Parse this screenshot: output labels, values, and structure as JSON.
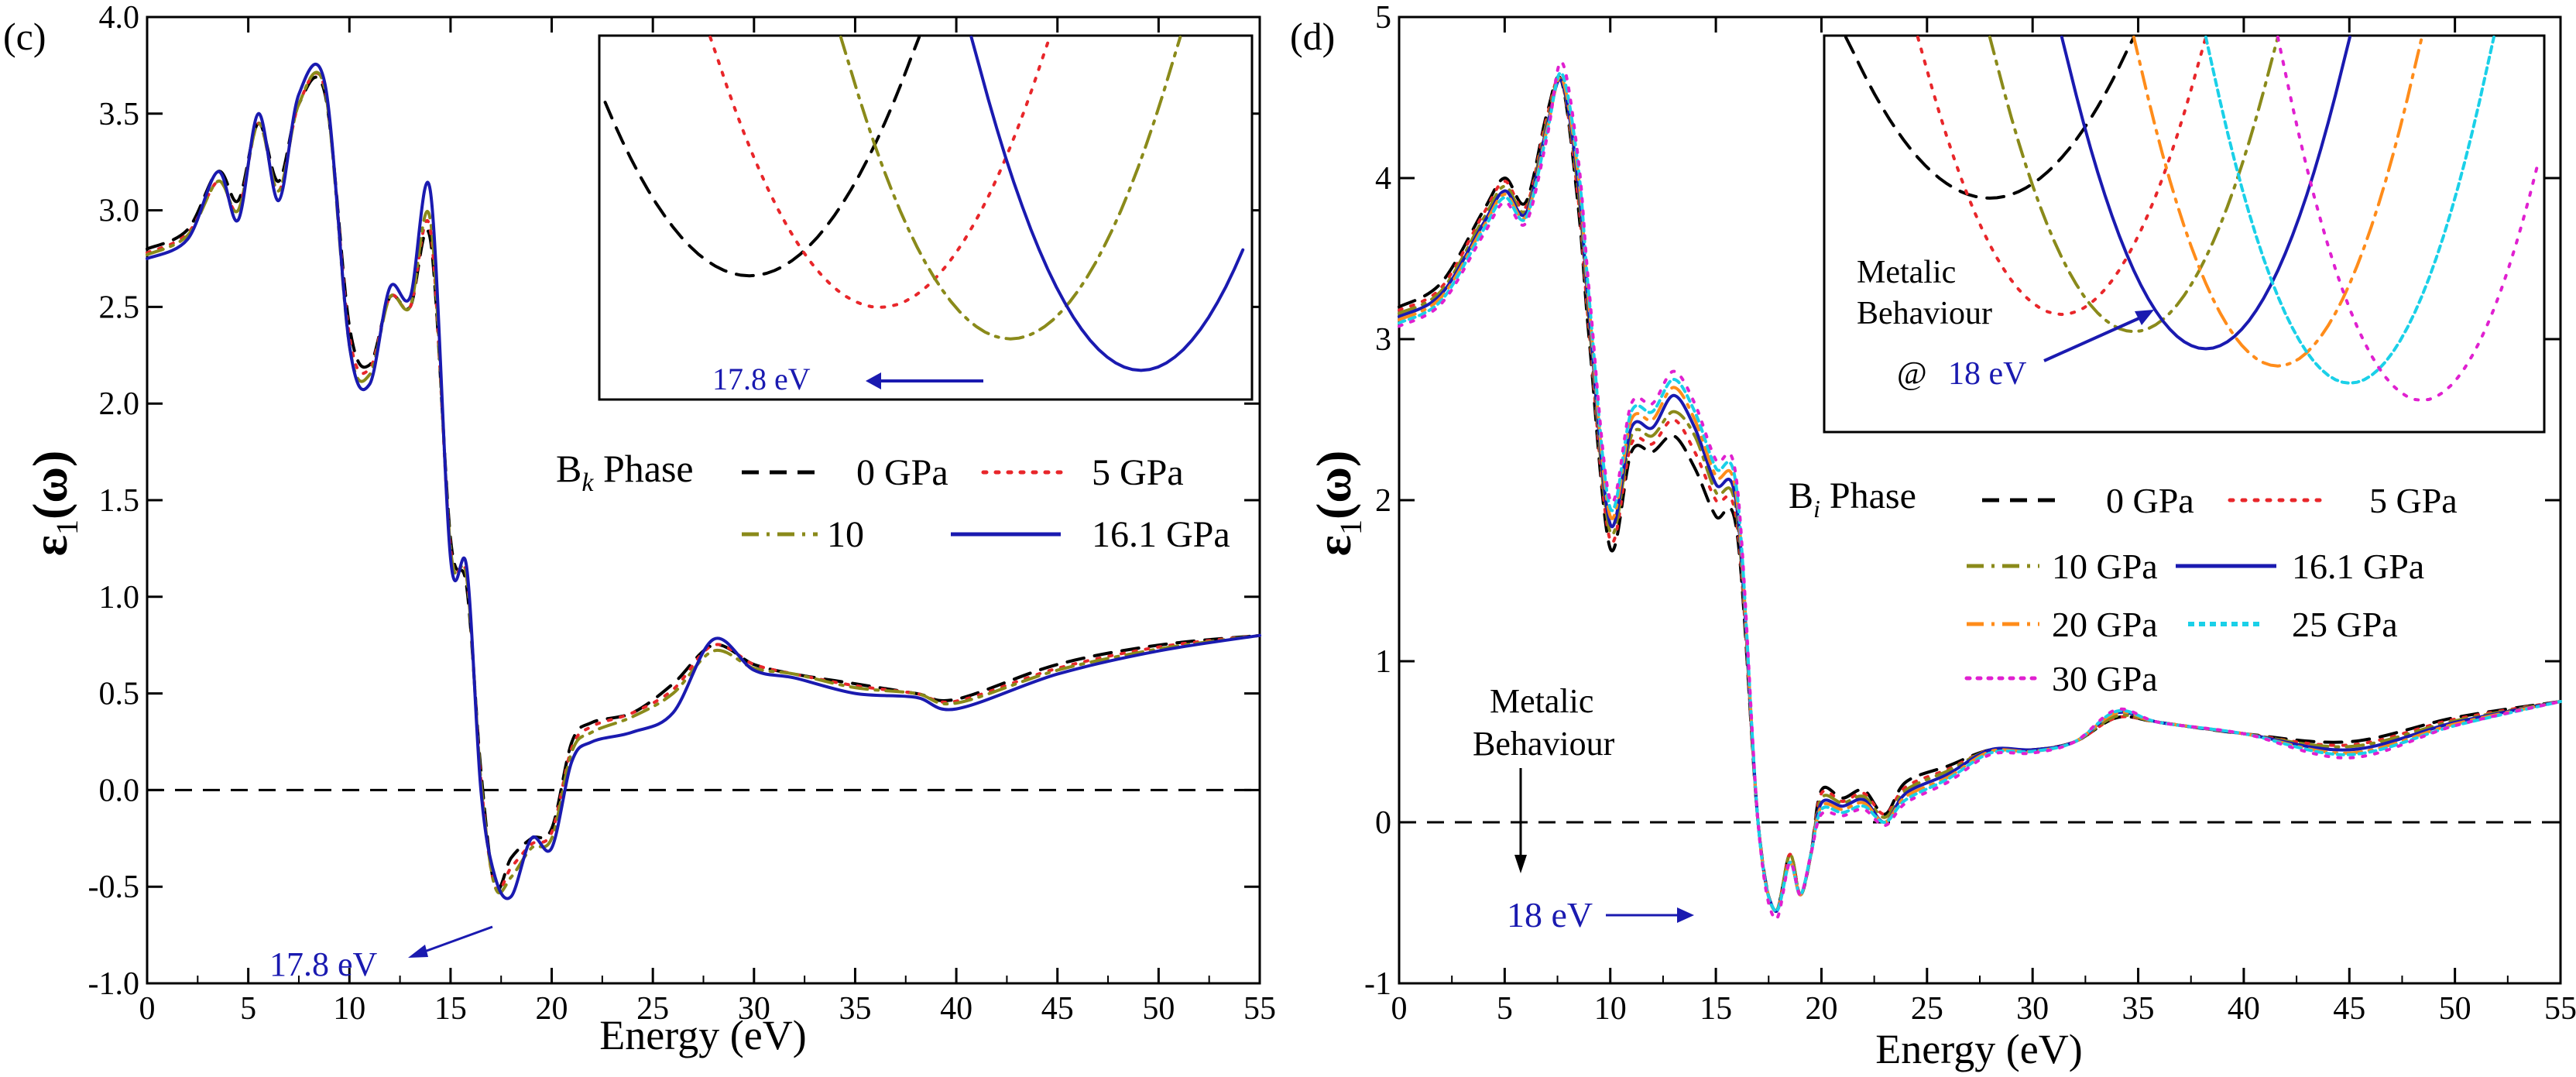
{
  "chart_data": [
    {
      "panel_label": "(c)",
      "type": "line",
      "xlabel": "Energy (eV)",
      "ylabel_main": "ε",
      "ylabel_sub": "1",
      "ylabel_suffix": "(ω)",
      "xlim": [
        0,
        55
      ],
      "ylim": [
        -1.0,
        4.0
      ],
      "xticks": [
        0,
        5,
        10,
        15,
        20,
        25,
        30,
        35,
        40,
        45,
        50,
        55
      ],
      "yticks": [
        -1.0,
        -0.5,
        0.0,
        0.5,
        1.0,
        1.5,
        2.0,
        2.5,
        3.0,
        3.5,
        4.0
      ],
      "ytick_decimals": 1,
      "zero_line": 0,
      "legend": {
        "phase_prefix": "B",
        "phase_subscript": "k",
        "phase_suffix": " Phase",
        "entries": [
          "0 GPa",
          "5 GPa",
          "10",
          "16.1 GPa"
        ]
      },
      "annotation": {
        "text": "17.8 eV",
        "color": "#1a1ab0",
        "x": 17.8,
        "y": -0.5
      },
      "inset": {
        "arrow_text": "17.8 eV"
      },
      "series": [
        {
          "name": "0 GPa",
          "color": "#000000",
          "dash": "dashed",
          "shift": -0.6,
          "x": [
            0,
            2,
            3.5,
            4.5,
            5.5,
            6.5,
            7.5,
            8.8,
            10,
            11,
            12,
            13,
            14,
            15,
            15.8,
            16.5,
            17.2,
            18,
            19,
            20,
            21,
            22,
            24,
            26,
            28,
            30,
            32,
            35,
            38,
            40,
            45,
            50,
            55
          ],
          "y": [
            2.8,
            2.9,
            3.2,
            3.05,
            3.45,
            3.15,
            3.55,
            3.6,
            2.4,
            2.2,
            2.55,
            2.5,
            2.85,
            1.3,
            1.05,
            0.1,
            -0.5,
            -0.35,
            -0.25,
            -0.2,
            0.25,
            0.35,
            0.4,
            0.55,
            0.75,
            0.65,
            0.6,
            0.55,
            0.5,
            0.47,
            0.65,
            0.75,
            0.8
          ]
        },
        {
          "name": "5 GPa",
          "color": "#e8262a",
          "dash": "dotted",
          "shift": -0.3,
          "x": [
            0,
            2,
            3.5,
            4.5,
            5.5,
            6.5,
            7.5,
            8.8,
            10,
            11,
            12,
            13,
            14,
            15,
            15.8,
            16.5,
            17.2,
            18,
            19,
            20,
            21,
            22,
            24,
            26,
            28,
            30,
            32,
            35,
            38,
            40,
            45,
            50,
            55
          ],
          "y": [
            2.78,
            2.88,
            3.15,
            3.0,
            3.45,
            3.1,
            3.55,
            3.62,
            2.35,
            2.18,
            2.55,
            2.5,
            2.9,
            1.25,
            1.1,
            0.05,
            -0.5,
            -0.4,
            -0.28,
            -0.22,
            0.22,
            0.33,
            0.4,
            0.52,
            0.75,
            0.65,
            0.6,
            0.54,
            0.5,
            0.46,
            0.63,
            0.74,
            0.8
          ]
        },
        {
          "name": "10",
          "color": "#8a8a1a",
          "dash": "dashdot",
          "shift": 0,
          "x": [
            0,
            2,
            3.5,
            4.5,
            5.5,
            6.5,
            7.5,
            8.8,
            10,
            11,
            12,
            13,
            14,
            15,
            15.8,
            16.5,
            17.2,
            18,
            19,
            20,
            21,
            22,
            24,
            26,
            28,
            30,
            32,
            35,
            38,
            40,
            45,
            50,
            55
          ],
          "y": [
            2.77,
            2.87,
            3.15,
            3.0,
            3.45,
            3.1,
            3.55,
            3.62,
            2.3,
            2.15,
            2.55,
            2.5,
            2.95,
            1.25,
            1.1,
            0.05,
            -0.5,
            -0.45,
            -0.3,
            -0.25,
            0.2,
            0.3,
            0.38,
            0.5,
            0.72,
            0.63,
            0.6,
            0.53,
            0.5,
            0.45,
            0.62,
            0.73,
            0.8
          ]
        },
        {
          "name": "16.1 GPa",
          "color": "#1a1ab0",
          "dash": "solid",
          "shift": 0.35,
          "x": [
            0,
            2,
            3.5,
            4.5,
            5.5,
            6.5,
            7.5,
            8.8,
            10,
            11,
            12,
            13,
            14,
            15,
            15.8,
            16.5,
            17.2,
            18,
            19,
            20,
            21,
            22,
            24,
            26,
            28,
            30,
            32,
            35,
            38,
            40,
            45,
            50,
            55
          ],
          "y": [
            2.75,
            2.85,
            3.2,
            2.95,
            3.5,
            3.05,
            3.6,
            3.65,
            2.3,
            2.1,
            2.6,
            2.55,
            3.1,
            1.2,
            1.15,
            0.0,
            -0.45,
            -0.55,
            -0.25,
            -0.3,
            0.15,
            0.25,
            0.3,
            0.4,
            0.78,
            0.62,
            0.58,
            0.5,
            0.48,
            0.42,
            0.6,
            0.72,
            0.8
          ]
        }
      ]
    },
    {
      "panel_label": "(d)",
      "type": "line",
      "xlabel": "Energy (eV)",
      "ylabel_main": "ε",
      "ylabel_sub": "1",
      "ylabel_suffix": "(ω)",
      "xlim": [
        0,
        55
      ],
      "ylim": [
        -1,
        5
      ],
      "xticks": [
        0,
        5,
        10,
        15,
        20,
        25,
        30,
        35,
        40,
        45,
        50,
        55
      ],
      "yticks": [
        -1,
        0,
        1,
        2,
        3,
        4,
        5
      ],
      "ytick_decimals": 0,
      "zero_line": 0,
      "legend": {
        "phase_prefix": "B",
        "phase_subscript": "i",
        "phase_suffix": " Phase",
        "entries": [
          "0 GPa",
          "5 GPa",
          "10 GPa",
          "16.1 GPa",
          "20 GPa",
          "25 GPa",
          "30 GPa"
        ]
      },
      "annotation": {
        "text": "18 eV",
        "color": "#1a1ab0",
        "x": 18,
        "y": -0.5
      },
      "metallic_label_line1": "Metalic",
      "metallic_label_line2": "Behaviour",
      "inset": {
        "label_line1": "Metalic",
        "label_line2": "Behaviour",
        "at_text": "@",
        "arrow_text": "18 eV"
      },
      "series": [
        {
          "name": "0 GPa",
          "color": "#000000",
          "dash": "dashed",
          "shift": -0.6,
          "x": [
            0,
            2,
            4,
            5,
            6,
            7,
            7.7,
            8.5,
            9,
            10,
            11,
            12,
            13,
            14,
            15,
            16,
            17,
            17.8,
            18.5,
            19,
            19.5,
            20,
            21,
            22,
            23,
            24,
            26,
            28,
            30,
            32,
            34,
            36,
            40,
            45,
            50,
            55
          ],
          "y": [
            3.2,
            3.35,
            3.8,
            4.0,
            3.85,
            4.4,
            4.6,
            3.8,
            3.0,
            1.7,
            2.3,
            2.3,
            2.4,
            2.2,
            1.9,
            1.8,
            0.0,
            -0.55,
            -0.2,
            -0.45,
            -0.2,
            0.2,
            0.15,
            0.2,
            0.05,
            0.25,
            0.35,
            0.45,
            0.45,
            0.5,
            0.65,
            0.62,
            0.55,
            0.5,
            0.65,
            0.75
          ]
        },
        {
          "name": "5 GPa",
          "color": "#e8262a",
          "dash": "dotted",
          "shift": -0.35,
          "x": [
            0,
            2,
            4,
            5,
            6,
            7,
            7.7,
            8.5,
            9,
            10,
            11,
            12,
            13,
            14,
            15,
            16,
            17,
            17.8,
            18.5,
            19,
            19.5,
            20,
            21,
            22,
            23,
            24,
            26,
            28,
            30,
            32,
            34,
            36,
            40,
            45,
            50,
            55
          ],
          "y": [
            3.18,
            3.32,
            3.78,
            3.98,
            3.82,
            4.38,
            4.6,
            3.85,
            3.05,
            1.75,
            2.35,
            2.35,
            2.5,
            2.3,
            2.0,
            1.85,
            0.0,
            -0.55,
            -0.2,
            -0.45,
            -0.2,
            0.18,
            0.13,
            0.18,
            0.05,
            0.22,
            0.33,
            0.45,
            0.45,
            0.5,
            0.65,
            0.62,
            0.55,
            0.48,
            0.64,
            0.75
          ]
        },
        {
          "name": "10 GPa",
          "color": "#8a8a1a",
          "dash": "dashdot",
          "shift": -0.15,
          "x": [
            0,
            2,
            4,
            5,
            6,
            7,
            7.7,
            8.5,
            9,
            10,
            11,
            12,
            13,
            14,
            15,
            16,
            17,
            17.8,
            18.5,
            19,
            19.5,
            20,
            21,
            22,
            23,
            24,
            26,
            28,
            30,
            32,
            34,
            36,
            40,
            45,
            50,
            55
          ],
          "y": [
            3.16,
            3.3,
            3.75,
            3.95,
            3.8,
            4.35,
            4.6,
            3.9,
            3.1,
            1.8,
            2.4,
            2.4,
            2.55,
            2.4,
            2.05,
            1.9,
            0.0,
            -0.55,
            -0.2,
            -0.45,
            -0.2,
            0.15,
            0.12,
            0.16,
            0.03,
            0.2,
            0.32,
            0.45,
            0.45,
            0.5,
            0.66,
            0.62,
            0.55,
            0.47,
            0.63,
            0.75
          ]
        },
        {
          "name": "16.1 GPa",
          "color": "#1a1ab0",
          "dash": "solid",
          "shift": 0,
          "x": [
            0,
            2,
            4,
            5,
            6,
            7,
            7.7,
            8.5,
            9,
            10,
            11,
            12,
            13,
            14,
            15,
            16,
            17,
            17.8,
            18.5,
            19,
            19.5,
            20,
            21,
            22,
            23,
            24,
            26,
            28,
            30,
            32,
            34,
            36,
            40,
            45,
            50,
            55
          ],
          "y": [
            3.14,
            3.28,
            3.72,
            3.92,
            3.78,
            4.32,
            4.6,
            3.95,
            3.15,
            1.85,
            2.45,
            2.45,
            2.65,
            2.45,
            2.1,
            1.95,
            0.0,
            -0.55,
            -0.25,
            -0.45,
            -0.2,
            0.12,
            0.1,
            0.14,
            0.0,
            0.18,
            0.3,
            0.45,
            0.45,
            0.5,
            0.68,
            0.62,
            0.55,
            0.45,
            0.62,
            0.75
          ]
        },
        {
          "name": "20 GPa",
          "color": "#ff8c1a",
          "dash": "dashdot",
          "shift": 0.15,
          "x": [
            0,
            2,
            4,
            5,
            6,
            7,
            7.7,
            8.5,
            9,
            10,
            11,
            12,
            13,
            14,
            15,
            16,
            17,
            17.8,
            18.5,
            19,
            19.5,
            20,
            21,
            22,
            23,
            24,
            26,
            28,
            30,
            32,
            34,
            36,
            40,
            45,
            50,
            55
          ],
          "y": [
            3.12,
            3.26,
            3.7,
            3.9,
            3.76,
            4.3,
            4.62,
            4.0,
            3.2,
            1.9,
            2.5,
            2.5,
            2.7,
            2.5,
            2.15,
            2.0,
            0.0,
            -0.55,
            -0.25,
            -0.45,
            -0.2,
            0.1,
            0.08,
            0.12,
            0.0,
            0.16,
            0.28,
            0.44,
            0.44,
            0.5,
            0.68,
            0.62,
            0.55,
            0.43,
            0.61,
            0.75
          ]
        },
        {
          "name": "25 GPa",
          "color": "#1ad0e8",
          "dash": "densedot",
          "shift": 0.3,
          "x": [
            0,
            2,
            4,
            5,
            6,
            7,
            7.7,
            8.5,
            9,
            10,
            11,
            12,
            13,
            14,
            15,
            16,
            17,
            17.8,
            18.5,
            19,
            19.5,
            20,
            21,
            22,
            23,
            24,
            26,
            28,
            30,
            32,
            34,
            36,
            40,
            45,
            50,
            55
          ],
          "y": [
            3.1,
            3.24,
            3.68,
            3.88,
            3.75,
            4.28,
            4.65,
            4.05,
            3.25,
            1.95,
            2.55,
            2.55,
            2.75,
            2.55,
            2.2,
            2.05,
            0.0,
            -0.55,
            -0.25,
            -0.45,
            -0.2,
            0.08,
            0.06,
            0.1,
            0.0,
            0.14,
            0.27,
            0.43,
            0.44,
            0.5,
            0.69,
            0.62,
            0.55,
            0.42,
            0.6,
            0.75
          ]
        },
        {
          "name": "30 GPa",
          "color": "#e020d0",
          "dash": "dotted",
          "shift": 0.5,
          "x": [
            0,
            2,
            4,
            5,
            6,
            7,
            7.7,
            8.5,
            9,
            10,
            11,
            12,
            13,
            14,
            15,
            16,
            17,
            17.8,
            18.5,
            19,
            19.5,
            20,
            21,
            22,
            23,
            24,
            26,
            28,
            30,
            32,
            34,
            36,
            40,
            45,
            50,
            55
          ],
          "y": [
            3.08,
            3.22,
            3.65,
            3.85,
            3.72,
            4.25,
            4.72,
            4.1,
            3.3,
            2.0,
            2.6,
            2.6,
            2.8,
            2.6,
            2.25,
            2.1,
            0.0,
            -0.6,
            -0.25,
            -0.45,
            -0.2,
            0.05,
            0.04,
            0.08,
            -0.02,
            0.12,
            0.25,
            0.42,
            0.43,
            0.5,
            0.7,
            0.62,
            0.55,
            0.4,
            0.6,
            0.75
          ]
        }
      ]
    }
  ]
}
